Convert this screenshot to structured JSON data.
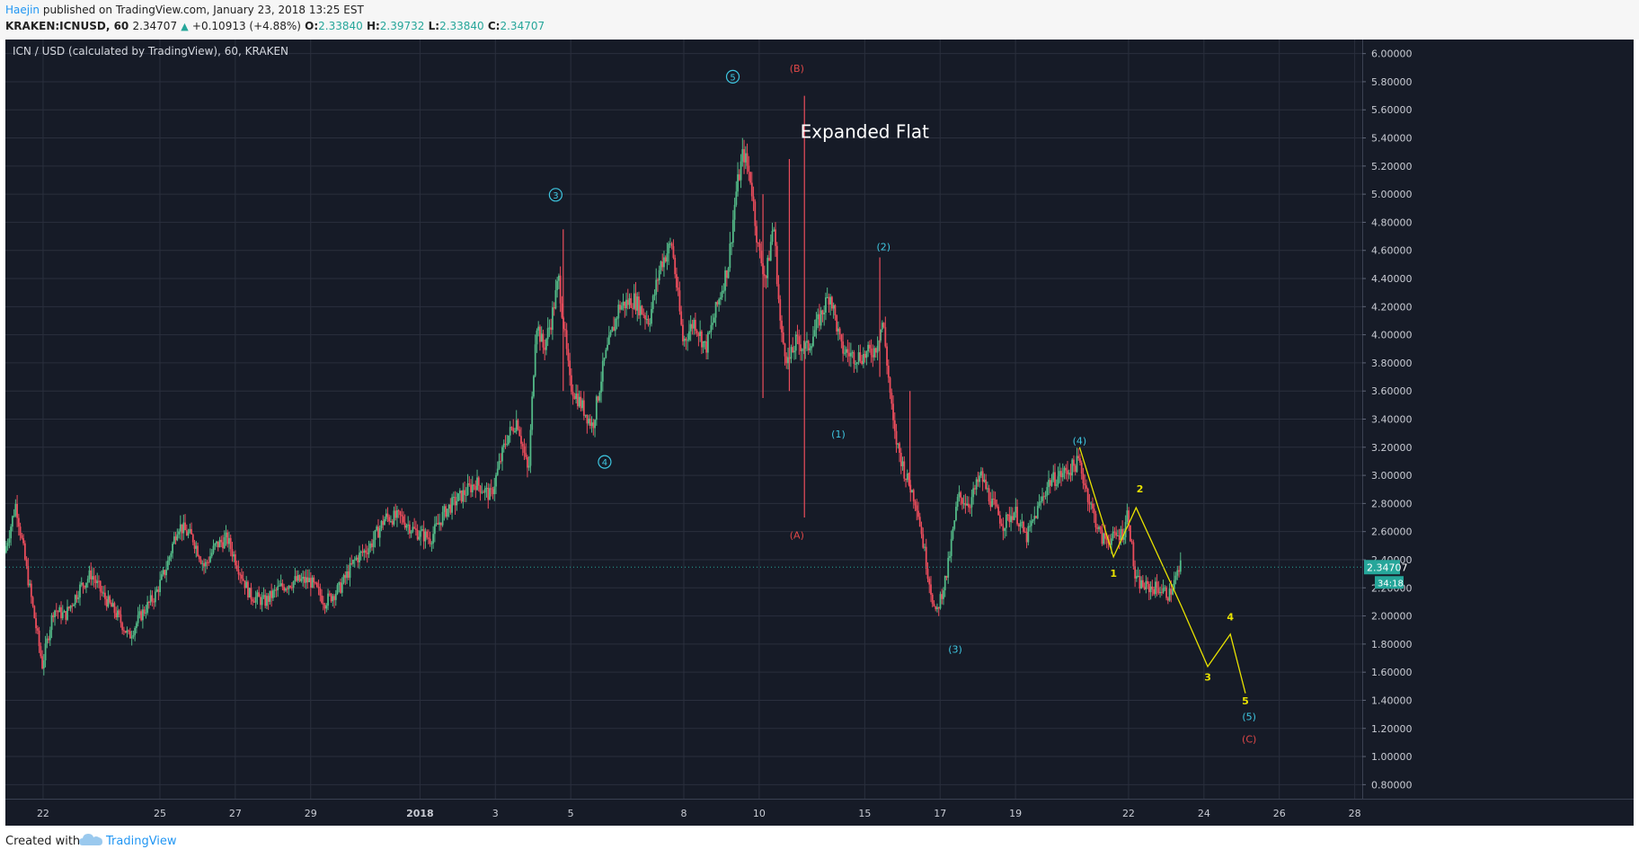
{
  "header": {
    "author": "Haejin",
    "published_text": "published on TradingView.com, January 23, 2018 13:25 EST",
    "symbol": "KRAKEN:ICNUSD, 60",
    "last": "2.34707",
    "up_icon": "triangle-up-icon",
    "change": "+0.10913 (+4.88%)",
    "o_label": "O:",
    "o_value": "2.33840",
    "h_label": "H:",
    "h_value": "2.39732",
    "l_label": "L:",
    "l_value": "2.33840",
    "c_label": "C:",
    "c_value": "2.34707"
  },
  "footer": {
    "created_with": "Created with",
    "brand": "TradingView",
    "logo_icon": "tradingview-cloud-icon"
  },
  "colors": {
    "background": "#161b27",
    "grid": "#2a2f3d",
    "up": "#53b987",
    "down": "#eb4d5c",
    "wave_cyan": "#3ec6e0",
    "wave_red": "#e04848",
    "wave_yellow": "#e8e200",
    "price_tag": "#26a69a"
  },
  "chart_data": {
    "type": "candlestick",
    "title": "ICN / USD (calculated by TradingView), 60, KRAKEN",
    "annotation_title": "Expanded Flat",
    "ylim": [
      0.7,
      6.1
    ],
    "y_ticks": [
      "6.00000",
      "5.80000",
      "5.60000",
      "5.40000",
      "5.20000",
      "5.00000",
      "4.80000",
      "4.60000",
      "4.40000",
      "4.20000",
      "4.00000",
      "3.80000",
      "3.60000",
      "3.40000",
      "3.20000",
      "3.00000",
      "2.80000",
      "2.60000",
      "2.40000",
      "2.20000",
      "2.00000",
      "1.80000",
      "1.60000",
      "1.40000",
      "1.20000",
      "1.00000",
      "0.80000"
    ],
    "x_ticks": [
      {
        "label": "22",
        "t": 1.3
      },
      {
        "label": "25",
        "t": 4.4
      },
      {
        "label": "27",
        "t": 6.4
      },
      {
        "label": "29",
        "t": 8.4
      },
      {
        "label": "2018",
        "t": 11.3
      },
      {
        "label": "3",
        "t": 13.3
      },
      {
        "label": "5",
        "t": 15.3
      },
      {
        "label": "8",
        "t": 18.3
      },
      {
        "label": "10",
        "t": 20.3
      },
      {
        "label": "15",
        "t": 23.1
      },
      {
        "label": "17",
        "t": 25.1
      },
      {
        "label": "19",
        "t": 27.1
      },
      {
        "label": "22",
        "t": 30.1
      },
      {
        "label": "24",
        "t": 32.1
      },
      {
        "label": "26",
        "t": 34.1
      },
      {
        "label": "28",
        "t": 36.1
      }
    ],
    "x_range": [
      0.3,
      36.3
    ],
    "path": [
      [
        0.3,
        2.45
      ],
      [
        0.6,
        2.8
      ],
      [
        0.9,
        2.3
      ],
      [
        1.3,
        1.65
      ],
      [
        1.6,
        2.05
      ],
      [
        1.9,
        2.0
      ],
      [
        2.3,
        2.2
      ],
      [
        2.6,
        2.3
      ],
      [
        2.9,
        2.15
      ],
      [
        3.3,
        2.0
      ],
      [
        3.6,
        1.85
      ],
      [
        3.9,
        2.0
      ],
      [
        4.3,
        2.15
      ],
      [
        4.6,
        2.35
      ],
      [
        4.9,
        2.65
      ],
      [
        5.3,
        2.55
      ],
      [
        5.6,
        2.35
      ],
      [
        5.9,
        2.5
      ],
      [
        6.2,
        2.55
      ],
      [
        6.5,
        2.35
      ],
      [
        6.8,
        2.15
      ],
      [
        7.2,
        2.1
      ],
      [
        7.6,
        2.2
      ],
      [
        8.0,
        2.25
      ],
      [
        8.4,
        2.25
      ],
      [
        8.8,
        2.1
      ],
      [
        9.2,
        2.2
      ],
      [
        9.6,
        2.4
      ],
      [
        10.0,
        2.5
      ],
      [
        10.4,
        2.7
      ],
      [
        10.8,
        2.7
      ],
      [
        11.2,
        2.6
      ],
      [
        11.6,
        2.55
      ],
      [
        12.0,
        2.75
      ],
      [
        12.4,
        2.85
      ],
      [
        12.8,
        2.95
      ],
      [
        13.2,
        2.85
      ],
      [
        13.6,
        3.25
      ],
      [
        13.9,
        3.4
      ],
      [
        14.2,
        3.0
      ],
      [
        14.4,
        4.1
      ],
      [
        14.6,
        3.9
      ],
      [
        14.8,
        4.1
      ],
      [
        15.0,
        4.4
      ],
      [
        15.3,
        3.65
      ],
      [
        15.6,
        3.5
      ],
      [
        15.9,
        3.35
      ],
      [
        16.2,
        3.8
      ],
      [
        16.6,
        4.2
      ],
      [
        17.0,
        4.25
      ],
      [
        17.4,
        4.1
      ],
      [
        17.7,
        4.5
      ],
      [
        18.0,
        4.65
      ],
      [
        18.3,
        3.95
      ],
      [
        18.6,
        4.1
      ],
      [
        18.9,
        3.9
      ],
      [
        19.2,
        4.2
      ],
      [
        19.5,
        4.5
      ],
      [
        19.7,
        5.0
      ],
      [
        19.9,
        5.3
      ],
      [
        20.1,
        5.1
      ],
      [
        20.3,
        4.6
      ],
      [
        20.5,
        4.4
      ],
      [
        20.7,
        4.8
      ],
      [
        20.9,
        4.0
      ],
      [
        21.1,
        3.8
      ],
      [
        21.3,
        3.95
      ],
      [
        21.6,
        3.9
      ],
      [
        21.9,
        4.1
      ],
      [
        22.2,
        4.3
      ],
      [
        22.5,
        3.9
      ],
      [
        22.8,
        3.85
      ],
      [
        23.1,
        3.85
      ],
      [
        23.4,
        3.9
      ],
      [
        23.6,
        4.1
      ],
      [
        23.9,
        3.3
      ],
      [
        24.2,
        3.0
      ],
      [
        24.5,
        2.8
      ],
      [
        24.8,
        2.3
      ],
      [
        25.0,
        2.0
      ],
      [
        25.3,
        2.3
      ],
      [
        25.6,
        2.85
      ],
      [
        25.9,
        2.8
      ],
      [
        26.2,
        3.0
      ],
      [
        26.5,
        2.8
      ],
      [
        26.8,
        2.65
      ],
      [
        27.1,
        2.75
      ],
      [
        27.4,
        2.55
      ],
      [
        27.7,
        2.75
      ],
      [
        28.0,
        2.95
      ],
      [
        28.3,
        3.0
      ],
      [
        28.6,
        3.05
      ],
      [
        28.8,
        3.1
      ],
      [
        29.1,
        2.8
      ],
      [
        29.4,
        2.55
      ],
      [
        29.7,
        2.55
      ],
      [
        30.0,
        2.6
      ],
      [
        30.1,
        2.75
      ],
      [
        30.3,
        2.25
      ],
      [
        30.6,
        2.2
      ],
      [
        30.9,
        2.2
      ],
      [
        31.2,
        2.15
      ],
      [
        31.5,
        2.35
      ]
    ],
    "spikes": [
      {
        "t": 21.5,
        "low": 2.7,
        "high": 5.7
      },
      {
        "t": 21.1,
        "low": 3.6,
        "high": 5.25
      },
      {
        "t": 20.4,
        "low": 3.55,
        "high": 5.0
      },
      {
        "t": 24.3,
        "low": 2.9,
        "high": 3.6
      },
      {
        "t": 23.5,
        "low": 3.7,
        "high": 4.55
      },
      {
        "t": 15.1,
        "low": 3.6,
        "high": 4.75
      }
    ],
    "last_price": 2.34707,
    "last_price_label": "2.34707",
    "countdown_label": "34:18",
    "wave_labels": [
      {
        "text": "3",
        "t": 14.9,
        "v": 4.97,
        "color": "#3ec6e0",
        "circled": true
      },
      {
        "text": "4",
        "t": 16.2,
        "v": 3.07,
        "color": "#3ec6e0",
        "circled": true
      },
      {
        "text": "5",
        "t": 19.6,
        "v": 5.81,
        "color": "#3ec6e0",
        "circled": true
      },
      {
        "text": "(B)",
        "t": 21.3,
        "v": 5.87,
        "color": "#e04848",
        "circled": false
      },
      {
        "text": "(A)",
        "t": 21.3,
        "v": 2.55,
        "color": "#e04848",
        "circled": false
      },
      {
        "text": "(1)",
        "t": 22.4,
        "v": 3.27,
        "color": "#3ec6e0",
        "circled": false
      },
      {
        "text": "(2)",
        "t": 23.6,
        "v": 4.6,
        "color": "#3ec6e0",
        "circled": false
      },
      {
        "text": "(3)",
        "t": 25.5,
        "v": 1.74,
        "color": "#3ec6e0",
        "circled": false
      },
      {
        "text": "(4)",
        "t": 28.8,
        "v": 3.22,
        "color": "#3ec6e0",
        "circled": false
      },
      {
        "text": "(5)",
        "t": 33.3,
        "v": 1.26,
        "color": "#3ec6e0",
        "circled": false
      },
      {
        "text": "(C)",
        "t": 33.3,
        "v": 1.1,
        "color": "#e04848",
        "circled": false
      }
    ],
    "impulse_path": {
      "color": "#e8e200",
      "points": [
        [
          28.8,
          3.2
        ],
        [
          29.7,
          2.42
        ],
        [
          30.3,
          2.77
        ],
        [
          31.5,
          2.07
        ],
        [
          32.2,
          1.64
        ],
        [
          32.8,
          1.87
        ],
        [
          33.2,
          1.45
        ]
      ],
      "labels": [
        {
          "text": "1",
          "t": 29.7,
          "v": 2.28
        },
        {
          "text": "2",
          "t": 30.4,
          "v": 2.88
        },
        {
          "text": "3",
          "t": 32.2,
          "v": 1.54
        },
        {
          "text": "4",
          "t": 32.8,
          "v": 1.97
        },
        {
          "text": "5",
          "t": 33.2,
          "v": 1.37
        }
      ]
    }
  }
}
